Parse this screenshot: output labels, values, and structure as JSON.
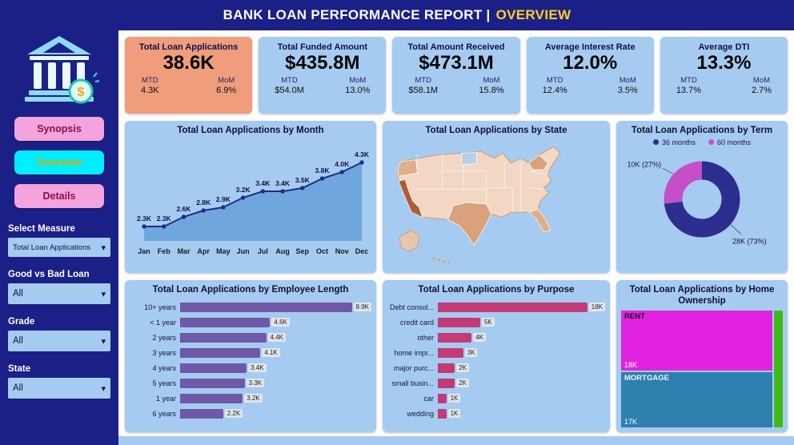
{
  "header": {
    "title_main": "BANK LOAN PERFORMANCE REPORT |",
    "title_accent": "OVERVIEW"
  },
  "colors": {
    "navy": "#1b2087",
    "panel_blue": "#a6cbf0",
    "accent_yellow": "#ffd21f"
  },
  "sidebar": {
    "nav": [
      {
        "label": "Synopsis"
      },
      {
        "label": "Overview",
        "active": true
      },
      {
        "label": "Details"
      }
    ],
    "filters": [
      {
        "label": "Select Measure",
        "value": "Total Loan Applications"
      },
      {
        "label": "Good vs Bad Loan",
        "value": "All"
      },
      {
        "label": "Grade",
        "value": "All"
      },
      {
        "label": "State",
        "value": "All"
      }
    ]
  },
  "labels": {
    "mtd": "MTD",
    "mom": "MoM"
  },
  "kpis": [
    {
      "title": "Total Loan Applications",
      "value": "38.6K",
      "mtd": "4.3K",
      "mom": "6.9%",
      "accent_bg": "#ef9d7b"
    },
    {
      "title": "Total Funded Amount",
      "value": "$435.8M",
      "mtd": "$54.0M",
      "mom": "13.0%"
    },
    {
      "title": "Total Amount Received",
      "value": "$473.1M",
      "mtd": "$58.1M",
      "mom": "15.8%"
    },
    {
      "title": "Average Interest Rate",
      "value": "12.0%",
      "mtd": "12.4%",
      "mom": "3.5%"
    },
    {
      "title": "Average DTI",
      "value": "13.3%",
      "mtd": "13.7%",
      "mom": "2.7%"
    }
  ],
  "chart_data": [
    {
      "id": "month",
      "type": "line",
      "title": "Total Loan Applications by Month",
      "x": [
        "Jan",
        "Feb",
        "Mar",
        "Apr",
        "May",
        "Jun",
        "Jul",
        "Aug",
        "Sep",
        "Oct",
        "Nov",
        "Dec"
      ],
      "values": [
        2.3,
        2.3,
        2.6,
        2.8,
        2.9,
        3.2,
        3.4,
        3.4,
        3.5,
        3.8,
        4.0,
        4.3
      ],
      "labels": [
        "2.3K",
        "2.3K",
        "2.6K",
        "2.8K",
        "2.9K",
        "3.2K",
        "3.4K",
        "3.4K",
        "3.5K",
        "3.8K",
        "4.0K",
        "4.3K"
      ],
      "ylim": [
        2.0,
        4.6
      ],
      "unit": "K applications",
      "line_color": "#1f2c88",
      "area_color": "#6fa6de"
    },
    {
      "id": "state",
      "type": "map",
      "title": "Total Loan Applications by State",
      "note": "US choropleth shaded light-to-dark orange; California darkest",
      "scale_colors": [
        "#f2d8c4",
        "#b05c36"
      ]
    },
    {
      "id": "term",
      "type": "pie",
      "title": "Total Loan Applications by Term",
      "categories": [
        "36 months",
        "60 months"
      ],
      "percents": [
        73,
        27
      ],
      "value_labels": [
        "28K (73%)",
        "10K (27%)"
      ],
      "colors": [
        "#2b2e8f",
        "#c44fc9"
      ]
    },
    {
      "id": "employee",
      "type": "bar",
      "title": "Total Loan Applications by Employee Length",
      "categories": [
        "10+ years",
        "< 1 year",
        "2 years",
        "3 years",
        "4 years",
        "5 years",
        "1 year",
        "6 years"
      ],
      "values": [
        8.9,
        4.6,
        4.4,
        4.1,
        3.4,
        3.3,
        3.2,
        2.2
      ],
      "labels": [
        "8.9K",
        "4.6K",
        "4.4K",
        "4.1K",
        "3.4K",
        "3.3K",
        "3.2K",
        "2.2K"
      ],
      "bar_color": "#6f58a8"
    },
    {
      "id": "purpose",
      "type": "bar",
      "title": "Total Loan Applications by Purpose",
      "categories": [
        "Debt consol...",
        "credit card",
        "other",
        "home impr...",
        "major purc...",
        "small busin...",
        "car",
        "wedding"
      ],
      "values": [
        18,
        5,
        4,
        3,
        2,
        2,
        1,
        1
      ],
      "labels": [
        "18K",
        "5K",
        "4K",
        "3K",
        "2K",
        "2K",
        "1K",
        "1K"
      ],
      "bar_color": "#c23a78"
    },
    {
      "id": "home",
      "type": "treemap",
      "title": "Total Loan Applications by Home Ownership",
      "items": [
        {
          "name": "RENT",
          "value": "18K",
          "color": "#e123e1"
        },
        {
          "name": "MORTGAGE",
          "value": "17K",
          "color": "#2e7fae"
        },
        {
          "name": "",
          "value": "",
          "color": "#3fbb19"
        }
      ]
    }
  ]
}
